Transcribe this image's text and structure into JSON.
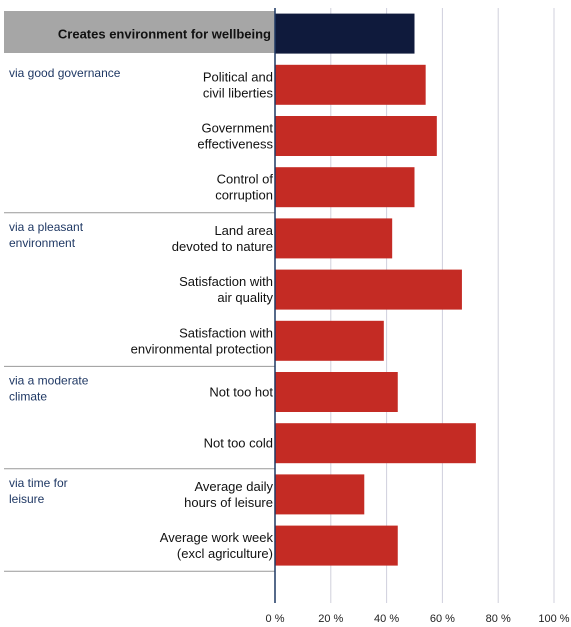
{
  "chart_data": {
    "type": "bar",
    "orientation": "horizontal",
    "header": {
      "label": "Creates environment for wellbeing",
      "value": 50
    },
    "groups": [
      {
        "label": [
          "via good governance"
        ],
        "items": [
          {
            "label": [
              "Political and",
              "civil liberties"
            ],
            "value": 54
          },
          {
            "label": [
              "Government",
              "effectiveness"
            ],
            "value": 58
          },
          {
            "label": [
              "Control of",
              "corruption"
            ],
            "value": 50
          }
        ]
      },
      {
        "label": [
          "via a pleasant",
          "environment"
        ],
        "items": [
          {
            "label": [
              "Land area",
              "devoted to nature"
            ],
            "value": 42
          },
          {
            "label": [
              "Satisfaction with",
              "air quality"
            ],
            "value": 67
          },
          {
            "label": [
              "Satisfaction with",
              "environmental protection"
            ],
            "value": 39
          }
        ]
      },
      {
        "label": [
          "via a moderate",
          "climate"
        ],
        "items": [
          {
            "label": [
              "Not too hot"
            ],
            "value": 44
          },
          {
            "label": [
              "Not too cold"
            ],
            "value": 72
          }
        ]
      },
      {
        "label": [
          "via time for",
          "leisure"
        ],
        "items": [
          {
            "label": [
              "Average daily",
              "hours of leisure"
            ],
            "value": 32
          },
          {
            "label": [
              "Average work week",
              "(excl agriculture)"
            ],
            "value": 44
          }
        ]
      }
    ],
    "xlim": [
      0,
      100
    ],
    "xticks": [
      0,
      20,
      40,
      60,
      80,
      100
    ],
    "tick_suffix": " %",
    "grid": true,
    "colors": {
      "header_bar": "#0f1a3c",
      "bar": "#c42b24",
      "header_background": "#a6a6a6",
      "axis": "#1f3864",
      "grid": "#d0d0dc",
      "separator": "#999999"
    }
  }
}
